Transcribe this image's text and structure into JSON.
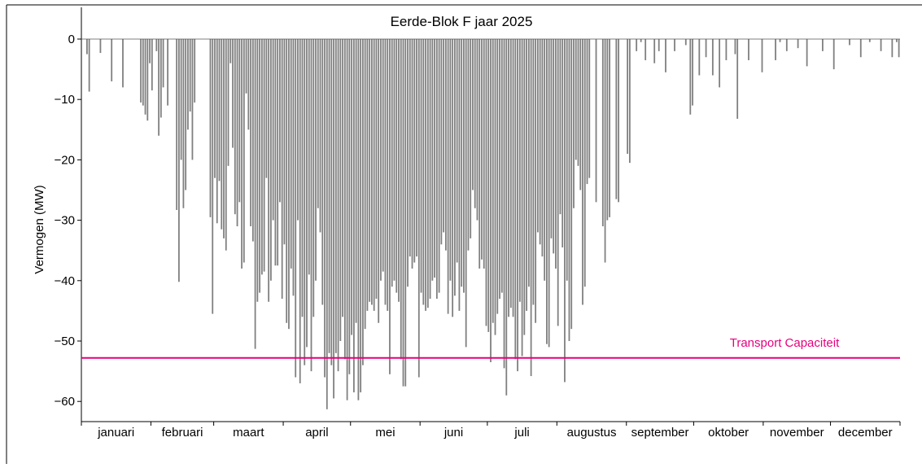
{
  "chart_data": {
    "type": "bar",
    "title": "Eerde-Blok F jaar 2025",
    "ylabel": "Vermogen (MW)",
    "xlabel": "",
    "ylim": [
      -63.5,
      0
    ],
    "yticks": [
      0,
      -10,
      -20,
      -30,
      -40,
      -50,
      -60
    ],
    "months": [
      "januari",
      "februari",
      "maart",
      "april",
      "mei",
      "juni",
      "juli",
      "augustus",
      "september",
      "oktober",
      "november",
      "december"
    ],
    "bar_color": "#808080",
    "grid": false,
    "series": [
      {
        "type": "bar",
        "x_unit": "day of year 2025",
        "points": [
          {
            "x": 3,
            "y": -2.5
          },
          {
            "x": 4,
            "y": -8.7
          },
          {
            "x": 9,
            "y": -2.3
          },
          {
            "x": 14,
            "y": -7.0
          },
          {
            "x": 19,
            "y": -8.0
          },
          {
            "x": 27,
            "y": -10.5
          },
          {
            "x": 28,
            "y": -11.0
          },
          {
            "x": 29,
            "y": -12.5
          },
          {
            "x": 30,
            "y": -13.5
          },
          {
            "x": 31,
            "y": -4.0
          },
          {
            "x": 32,
            "y": -8.5
          },
          {
            "x": 34,
            "y": -2.0
          },
          {
            "x": 35,
            "y": -16.0
          },
          {
            "x": 36,
            "y": -13.0
          },
          {
            "x": 37,
            "y": -8.0
          },
          {
            "x": 39,
            "y": -11.0
          },
          {
            "x": 43,
            "y": -28.3
          },
          {
            "x": 44,
            "y": -40.2
          },
          {
            "x": 45,
            "y": -20.0
          },
          {
            "x": 46,
            "y": -28.0
          },
          {
            "x": 47,
            "y": -25.0
          },
          {
            "x": 48,
            "y": -15.0
          },
          {
            "x": 49,
            "y": -12.0
          },
          {
            "x": 50,
            "y": -20.0
          },
          {
            "x": 51,
            "y": -10.5
          },
          {
            "x": 58,
            "y": -29.5
          },
          {
            "x": 59,
            "y": -45.5
          },
          {
            "x": 60,
            "y": -23.0
          },
          {
            "x": 61,
            "y": -30.5
          },
          {
            "x": 62,
            "y": -23.5
          },
          {
            "x": 63,
            "y": -31.5
          },
          {
            "x": 64,
            "y": -33.0
          },
          {
            "x": 65,
            "y": -35.0
          },
          {
            "x": 66,
            "y": -21.0
          },
          {
            "x": 67,
            "y": -4.0
          },
          {
            "x": 68,
            "y": -18.0
          },
          {
            "x": 69,
            "y": -29.0
          },
          {
            "x": 70,
            "y": -31.0
          },
          {
            "x": 71,
            "y": -27.0
          },
          {
            "x": 72,
            "y": -38.0
          },
          {
            "x": 73,
            "y": -37.0
          },
          {
            "x": 74,
            "y": -9.0
          },
          {
            "x": 75,
            "y": -15.0
          },
          {
            "x": 76,
            "y": -31.0
          },
          {
            "x": 77,
            "y": -33.5
          },
          {
            "x": 78,
            "y": -51.3
          },
          {
            "x": 79,
            "y": -43.5
          },
          {
            "x": 80,
            "y": -42.0
          },
          {
            "x": 81,
            "y": -39.0
          },
          {
            "x": 82,
            "y": -38.5
          },
          {
            "x": 83,
            "y": -23.0
          },
          {
            "x": 84,
            "y": -43.5
          },
          {
            "x": 85,
            "y": -40.0
          },
          {
            "x": 86,
            "y": -30.0
          },
          {
            "x": 87,
            "y": -37.5
          },
          {
            "x": 88,
            "y": -37.5
          },
          {
            "x": 89,
            "y": -27.0
          },
          {
            "x": 90,
            "y": -43.0
          },
          {
            "x": 91,
            "y": -34.0
          },
          {
            "x": 92,
            "y": -47.0
          },
          {
            "x": 93,
            "y": -48.0
          },
          {
            "x": 94,
            "y": -38.0
          },
          {
            "x": 95,
            "y": -42.5
          },
          {
            "x": 96,
            "y": -56.0
          },
          {
            "x": 97,
            "y": -30.0
          },
          {
            "x": 98,
            "y": -57.0
          },
          {
            "x": 99,
            "y": -46.0
          },
          {
            "x": 100,
            "y": -54.0
          },
          {
            "x": 101,
            "y": -51.0
          },
          {
            "x": 102,
            "y": -39.0
          },
          {
            "x": 103,
            "y": -55.0
          },
          {
            "x": 104,
            "y": -46.0
          },
          {
            "x": 105,
            "y": -40.0
          },
          {
            "x": 106,
            "y": -28.0
          },
          {
            "x": 107,
            "y": -32.0
          },
          {
            "x": 108,
            "y": -44.0
          },
          {
            "x": 109,
            "y": -56.0
          },
          {
            "x": 110,
            "y": -61.3
          },
          {
            "x": 111,
            "y": -52.0
          },
          {
            "x": 112,
            "y": -54.0
          },
          {
            "x": 113,
            "y": -59.5
          },
          {
            "x": 114,
            "y": -52.0
          },
          {
            "x": 115,
            "y": -55.0
          },
          {
            "x": 116,
            "y": -50.0
          },
          {
            "x": 117,
            "y": -46.0
          },
          {
            "x": 118,
            "y": -53.0
          },
          {
            "x": 119,
            "y": -59.8
          },
          {
            "x": 120,
            "y": -55.5
          },
          {
            "x": 121,
            "y": -49.0
          },
          {
            "x": 122,
            "y": -58.5
          },
          {
            "x": 123,
            "y": -47.0
          },
          {
            "x": 124,
            "y": -59.8
          },
          {
            "x": 125,
            "y": -58.5
          },
          {
            "x": 126,
            "y": -54.0
          },
          {
            "x": 127,
            "y": -48.0
          },
          {
            "x": 128,
            "y": -45.0
          },
          {
            "x": 129,
            "y": -43.5
          },
          {
            "x": 130,
            "y": -44.0
          },
          {
            "x": 131,
            "y": -45.0
          },
          {
            "x": 132,
            "y": -43.0
          },
          {
            "x": 133,
            "y": -47.0
          },
          {
            "x": 134,
            "y": -40.0
          },
          {
            "x": 135,
            "y": -38.5
          },
          {
            "x": 136,
            "y": -44.0
          },
          {
            "x": 137,
            "y": -45.0
          },
          {
            "x": 138,
            "y": -55.5
          },
          {
            "x": 139,
            "y": -41.0
          },
          {
            "x": 140,
            "y": -40.0
          },
          {
            "x": 141,
            "y": -42.0
          },
          {
            "x": 142,
            "y": -43.5
          },
          {
            "x": 143,
            "y": -53.0
          },
          {
            "x": 144,
            "y": -57.5
          },
          {
            "x": 145,
            "y": -57.5
          },
          {
            "x": 146,
            "y": -41.0
          },
          {
            "x": 147,
            "y": -36.0
          },
          {
            "x": 148,
            "y": -38.0
          },
          {
            "x": 149,
            "y": -37.0
          },
          {
            "x": 150,
            "y": -36.0
          },
          {
            "x": 151,
            "y": -56.0
          },
          {
            "x": 152,
            "y": -42.0
          },
          {
            "x": 153,
            "y": -44.0
          },
          {
            "x": 154,
            "y": -45.0
          },
          {
            "x": 155,
            "y": -44.5
          },
          {
            "x": 156,
            "y": -43.0
          },
          {
            "x": 157,
            "y": -40.0
          },
          {
            "x": 158,
            "y": -39.5
          },
          {
            "x": 159,
            "y": -43.0
          },
          {
            "x": 160,
            "y": -42.0
          },
          {
            "x": 161,
            "y": -34.0
          },
          {
            "x": 162,
            "y": -32.0
          },
          {
            "x": 163,
            "y": -35.0
          },
          {
            "x": 164,
            "y": -45.5
          },
          {
            "x": 165,
            "y": -40.0
          },
          {
            "x": 166,
            "y": -46.0
          },
          {
            "x": 167,
            "y": -42.5
          },
          {
            "x": 168,
            "y": -37.0
          },
          {
            "x": 169,
            "y": -45.0
          },
          {
            "x": 170,
            "y": -41.0
          },
          {
            "x": 171,
            "y": -42.0
          },
          {
            "x": 172,
            "y": -51.0
          },
          {
            "x": 173,
            "y": -35.0
          },
          {
            "x": 174,
            "y": -33.0
          },
          {
            "x": 175,
            "y": -25.0
          },
          {
            "x": 176,
            "y": -28.0
          },
          {
            "x": 177,
            "y": -30.0
          },
          {
            "x": 178,
            "y": -38.0
          },
          {
            "x": 179,
            "y": -36.5
          },
          {
            "x": 180,
            "y": -38.0
          },
          {
            "x": 181,
            "y": -47.5
          },
          {
            "x": 182,
            "y": -48.5
          },
          {
            "x": 183,
            "y": -53.5
          },
          {
            "x": 184,
            "y": -47.0
          },
          {
            "x": 185,
            "y": -49.0
          },
          {
            "x": 186,
            "y": -45.5
          },
          {
            "x": 187,
            "y": -43.0
          },
          {
            "x": 188,
            "y": -42.0
          },
          {
            "x": 189,
            "y": -54.5
          },
          {
            "x": 190,
            "y": -59.0
          },
          {
            "x": 191,
            "y": -46.0
          },
          {
            "x": 192,
            "y": -44.5
          },
          {
            "x": 193,
            "y": -46.0
          },
          {
            "x": 194,
            "y": -53.0
          },
          {
            "x": 195,
            "y": -55.0
          },
          {
            "x": 196,
            "y": -43.5
          },
          {
            "x": 197,
            "y": -52.5
          },
          {
            "x": 198,
            "y": -49.0
          },
          {
            "x": 199,
            "y": -45.0
          },
          {
            "x": 200,
            "y": -41.0
          },
          {
            "x": 201,
            "y": -55.8
          },
          {
            "x": 202,
            "y": -44.0
          },
          {
            "x": 203,
            "y": -47.0
          },
          {
            "x": 204,
            "y": -32.0
          },
          {
            "x": 205,
            "y": -34.0
          },
          {
            "x": 206,
            "y": -36.0
          },
          {
            "x": 207,
            "y": -40.0
          },
          {
            "x": 208,
            "y": -50.5
          },
          {
            "x": 209,
            "y": -51.0
          },
          {
            "x": 210,
            "y": -33.0
          },
          {
            "x": 211,
            "y": -35.5
          },
          {
            "x": 212,
            "y": -38.0
          },
          {
            "x": 213,
            "y": -47.5
          },
          {
            "x": 214,
            "y": -29.0
          },
          {
            "x": 215,
            "y": -34.5
          },
          {
            "x": 216,
            "y": -56.8
          },
          {
            "x": 217,
            "y": -40.0
          },
          {
            "x": 218,
            "y": -50.0
          },
          {
            "x": 219,
            "y": -48.0
          },
          {
            "x": 220,
            "y": -28.0
          },
          {
            "x": 221,
            "y": -20.0
          },
          {
            "x": 222,
            "y": -21.0
          },
          {
            "x": 223,
            "y": -25.0
          },
          {
            "x": 224,
            "y": -44.0
          },
          {
            "x": 225,
            "y": -41.0
          },
          {
            "x": 226,
            "y": -24.0
          },
          {
            "x": 227,
            "y": -23.0
          },
          {
            "x": 230,
            "y": -27.0
          },
          {
            "x": 233,
            "y": -31.0
          },
          {
            "x": 234,
            "y": -37.0
          },
          {
            "x": 235,
            "y": -30.0
          },
          {
            "x": 236,
            "y": -29.5
          },
          {
            "x": 239,
            "y": -26.5
          },
          {
            "x": 240,
            "y": -27.0
          },
          {
            "x": 244,
            "y": -19.0
          },
          {
            "x": 245,
            "y": -20.5
          },
          {
            "x": 248,
            "y": -2.0
          },
          {
            "x": 250,
            "y": -0.5
          },
          {
            "x": 252,
            "y": -3.5
          },
          {
            "x": 256,
            "y": -4.0
          },
          {
            "x": 258,
            "y": -2.0
          },
          {
            "x": 261,
            "y": -5.5
          },
          {
            "x": 265,
            "y": -2.0
          },
          {
            "x": 270,
            "y": -1.0
          },
          {
            "x": 272,
            "y": -12.5
          },
          {
            "x": 273,
            "y": -11.0
          },
          {
            "x": 276,
            "y": -6.0
          },
          {
            "x": 279,
            "y": -3.0
          },
          {
            "x": 282,
            "y": -6.0
          },
          {
            "x": 285,
            "y": -8.0
          },
          {
            "x": 288,
            "y": -3.5
          },
          {
            "x": 292,
            "y": -2.5
          },
          {
            "x": 293,
            "y": -13.2
          },
          {
            "x": 298,
            "y": -3.5
          },
          {
            "x": 304,
            "y": -5.5
          },
          {
            "x": 310,
            "y": -3.5
          },
          {
            "x": 312,
            "y": -0.5
          },
          {
            "x": 315,
            "y": -2.0
          },
          {
            "x": 320,
            "y": -1.5
          },
          {
            "x": 324,
            "y": -4.5
          },
          {
            "x": 331,
            "y": -2.0
          },
          {
            "x": 336,
            "y": -5.0
          },
          {
            "x": 343,
            "y": -1.0
          },
          {
            "x": 348,
            "y": -3.0
          },
          {
            "x": 352,
            "y": -0.5
          },
          {
            "x": 357,
            "y": -2.0
          },
          {
            "x": 362,
            "y": -3.0
          },
          {
            "x": 364,
            "y": -0.5
          },
          {
            "x": 365,
            "y": -3.0
          }
        ]
      }
    ],
    "hline": {
      "y": -52.8,
      "label": "Transport Capaciteit",
      "color": "#e6007e"
    }
  }
}
